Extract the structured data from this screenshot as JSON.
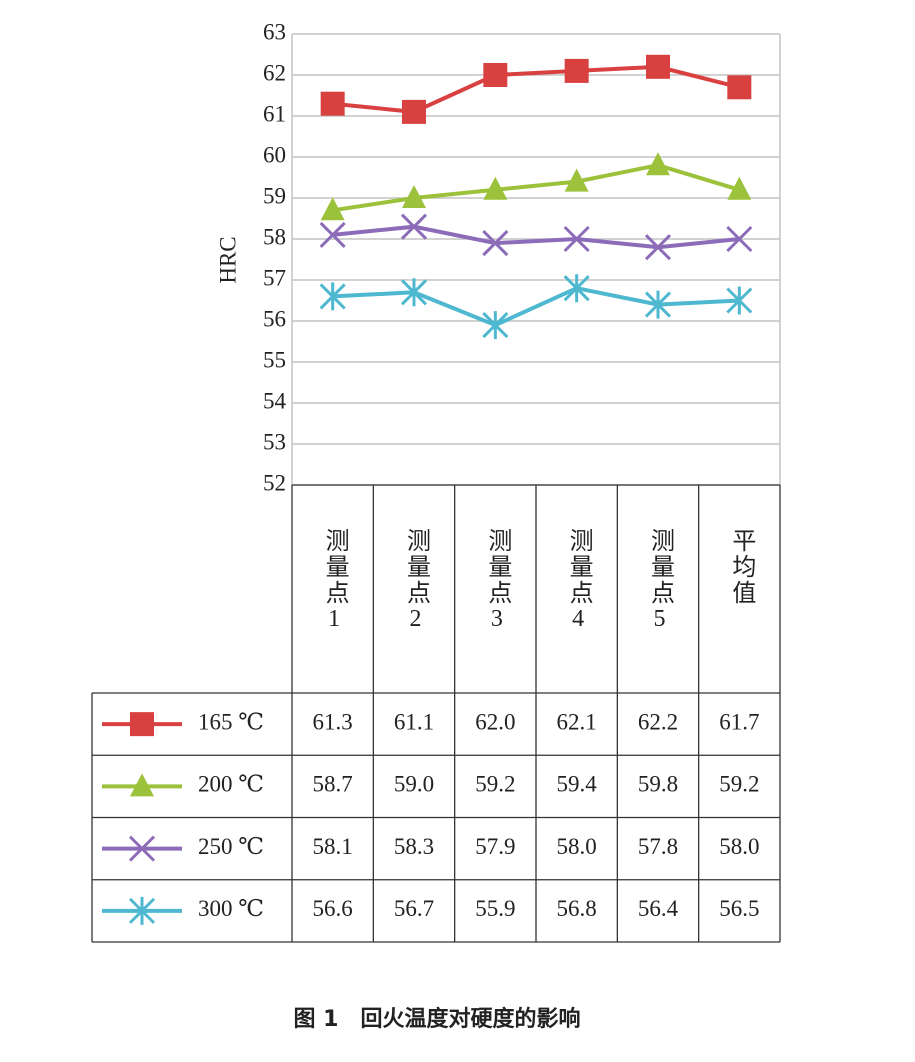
{
  "chart_data": {
    "type": "line",
    "y_label": "HRC",
    "caption": "图 1　回火温度对硬度的影响",
    "categories": [
      "测量点1",
      "测量点2",
      "测量点3",
      "测量点4",
      "测量点5",
      "平均值"
    ],
    "ylim": [
      52,
      63
    ],
    "yticks": [
      52,
      53,
      54,
      55,
      56,
      57,
      58,
      59,
      60,
      61,
      62,
      63
    ],
    "grid": true,
    "series": [
      {
        "name": "165 ℃",
        "color": "#d94141",
        "marker": "square",
        "values": [
          61.3,
          61.1,
          62.0,
          62.1,
          62.2,
          61.7
        ],
        "value_labels": [
          "61.3",
          "61.1",
          "62.0",
          "62.1",
          "62.2",
          "61.7"
        ]
      },
      {
        "name": "200 ℃",
        "color": "#9cc23c",
        "marker": "triangle",
        "values": [
          58.7,
          59.0,
          59.2,
          59.4,
          59.8,
          59.2
        ],
        "value_labels": [
          "58.7",
          "59.0",
          "59.2",
          "59.4",
          "59.8",
          "59.2"
        ]
      },
      {
        "name": "250 ℃",
        "color": "#8c6cb8",
        "marker": "x",
        "values": [
          58.1,
          58.3,
          57.9,
          58.0,
          57.8,
          58.0
        ],
        "value_labels": [
          "58.1",
          "58.3",
          "57.9",
          "58.0",
          "57.8",
          "58.0"
        ]
      },
      {
        "name": "300 ℃",
        "color": "#4db8cf",
        "marker": "star",
        "values": [
          56.6,
          56.7,
          55.9,
          56.8,
          56.4,
          56.5
        ],
        "value_labels": [
          "56.6",
          "56.7",
          "55.9",
          "56.8",
          "56.4",
          "56.5"
        ]
      }
    ]
  }
}
